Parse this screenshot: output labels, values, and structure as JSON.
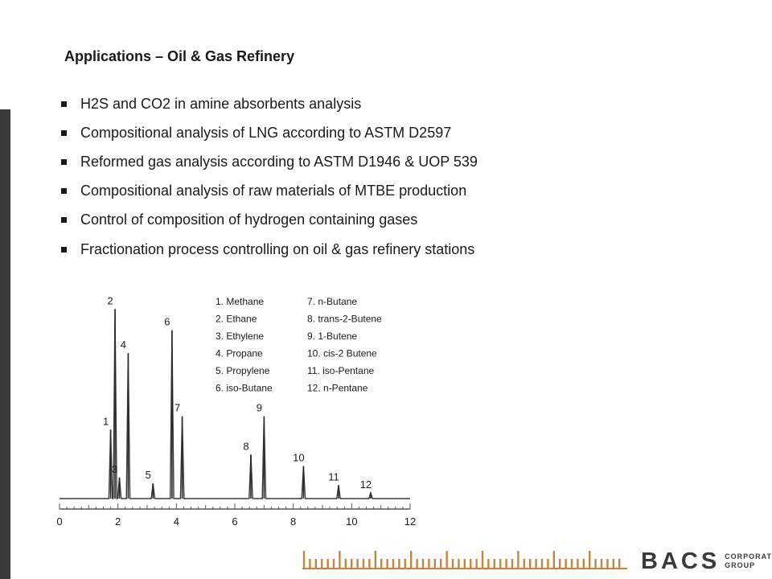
{
  "slide": {
    "title": "Applications – Oil & Gas Refinery",
    "bullets": [
      "H2S and CO2 in amine absorbents analysis",
      "Compositional analysis of LNG according to ASTM D2597",
      "Reformed gas analysis according to ASTM D1946 & UOP 539",
      "Compositional analysis of raw materials of MTBE production",
      "Control of composition of hydrogen containing gases",
      "Fractionation process controlling on oil & gas refinery stations"
    ]
  },
  "brand": {
    "name": "BACS",
    "sub_line1": "CORPORATE",
    "sub_line2": "GROUP",
    "accent_color": "#c8843a",
    "text_color": "#3a3a3a"
  },
  "chart_data": {
    "type": "line",
    "title": "",
    "xlabel": "",
    "ylabel": "",
    "xlim": [
      0,
      12
    ],
    "x_ticks": [
      0,
      2,
      4,
      6,
      8,
      10,
      12
    ],
    "legend": [
      "1.  Methane",
      "2.  Ethane",
      "3.  Ethylene",
      "4.  Propane",
      "5.  Propylene",
      "6.  iso-Butane",
      "7.  n-Butane",
      "8.  trans-2-Butene",
      "9.  1-Butene",
      "10.  cis-2 Butene",
      "11.  iso-Pentane",
      "12.  n-Pentane"
    ],
    "peaks": [
      {
        "label": "1",
        "x": 1.75,
        "height": 0.36
      },
      {
        "label": "2",
        "x": 1.9,
        "height": 0.99
      },
      {
        "label": "3",
        "x": 2.05,
        "height": 0.11
      },
      {
        "label": "4",
        "x": 2.35,
        "height": 0.76
      },
      {
        "label": "5",
        "x": 3.2,
        "height": 0.08
      },
      {
        "label": "6",
        "x": 3.85,
        "height": 0.88
      },
      {
        "label": "7",
        "x": 4.2,
        "height": 0.43
      },
      {
        "label": "8",
        "x": 6.55,
        "height": 0.23
      },
      {
        "label": "9",
        "x": 7.0,
        "height": 0.43
      },
      {
        "label": "10",
        "x": 8.35,
        "height": 0.17
      },
      {
        "label": "11",
        "x": 9.55,
        "height": 0.07
      },
      {
        "label": "12",
        "x": 10.65,
        "height": 0.03
      }
    ]
  }
}
